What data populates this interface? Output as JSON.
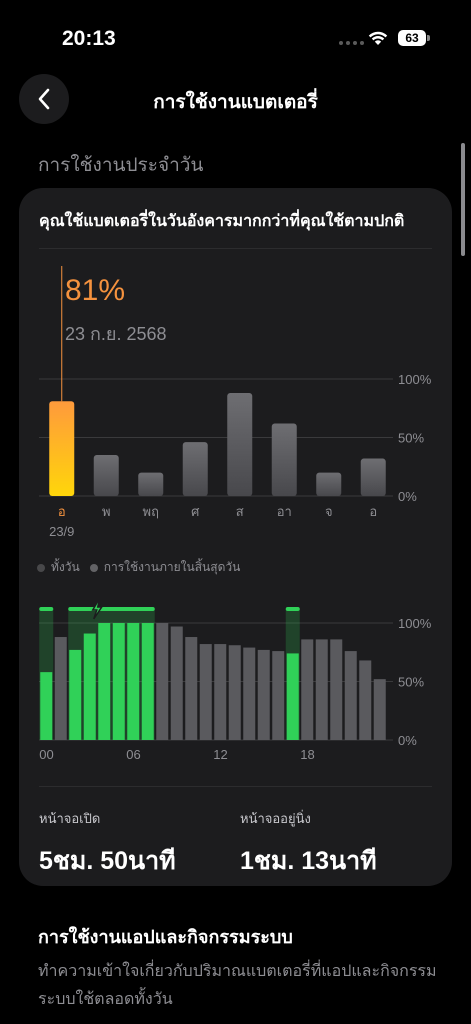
{
  "status_bar": {
    "time": "20:13",
    "battery": "63"
  },
  "nav": {
    "title": "การใช้งานแบตเตอรี่"
  },
  "section_label": "การใช้งานประจำวัน",
  "card": {
    "header": "คุณใช้แบตเตอรี่ในวันอังคารมากกว่าที่คุณใช้ตามปกติ",
    "selected_value": "81%",
    "selected_date": "23 ก.ย. 2568"
  },
  "legend": {
    "all_day": "ทั้งวัน",
    "end_of_day": "การใช้งานภายในสิ้นสุดวัน"
  },
  "stats": {
    "screen_on_label": "หน้าจอเปิด",
    "screen_on_value": "5ชม. 50นาที",
    "screen_idle_label": "หน้าจออยู่นิ่ง",
    "screen_idle_value": "1ชม. 13นาที"
  },
  "apps_section": {
    "title": "การใช้งานแอปและกิจกรรมระบบ",
    "description": "ทำความเข้าใจเกี่ยวกับปริมาณแบตเตอรี่ที่แอปและกิจกรรมระบบใช้ตลอดทั้งวัน"
  },
  "colors": {
    "accent": "#f5923e",
    "selected_bar_top": "#ff9a3c",
    "selected_bar_bottom": "#ffd60a",
    "bar_gray": "#5a5a5e",
    "charging_green": "#30d158"
  },
  "chart_data": [
    {
      "type": "bar",
      "title": "",
      "categories": [
        "อ",
        "พ",
        "พฤ",
        "ศ",
        "ส",
        "อา",
        "จ",
        "อ"
      ],
      "sub_labels": [
        "23/9",
        "",
        "",
        "",
        "",
        "",
        "",
        ""
      ],
      "values": [
        81,
        35,
        20,
        46,
        88,
        62,
        20,
        32
      ],
      "selected_index": 0,
      "ylim": [
        0,
        100
      ],
      "y_ticks": [
        "0%",
        "50%",
        "100%"
      ],
      "grid": true
    },
    {
      "type": "bar",
      "title": "",
      "x_ticks": [
        "00",
        "06",
        "12",
        "18"
      ],
      "values": [
        58,
        88,
        77,
        91,
        100,
        100,
        100,
        100,
        100,
        97,
        88,
        82,
        82,
        81,
        79,
        77,
        76,
        74,
        86,
        86,
        86,
        76,
        68,
        52
      ],
      "charging_hours": [
        0,
        2,
        3,
        4,
        5,
        6,
        7,
        17
      ],
      "charging_marker_hours": [
        0,
        2,
        3,
        4,
        5,
        6,
        7,
        17
      ],
      "charging_value": 74,
      "ylim": [
        0,
        100
      ],
      "y_ticks": [
        "0%",
        "50%",
        "100%"
      ],
      "grid": true
    }
  ]
}
